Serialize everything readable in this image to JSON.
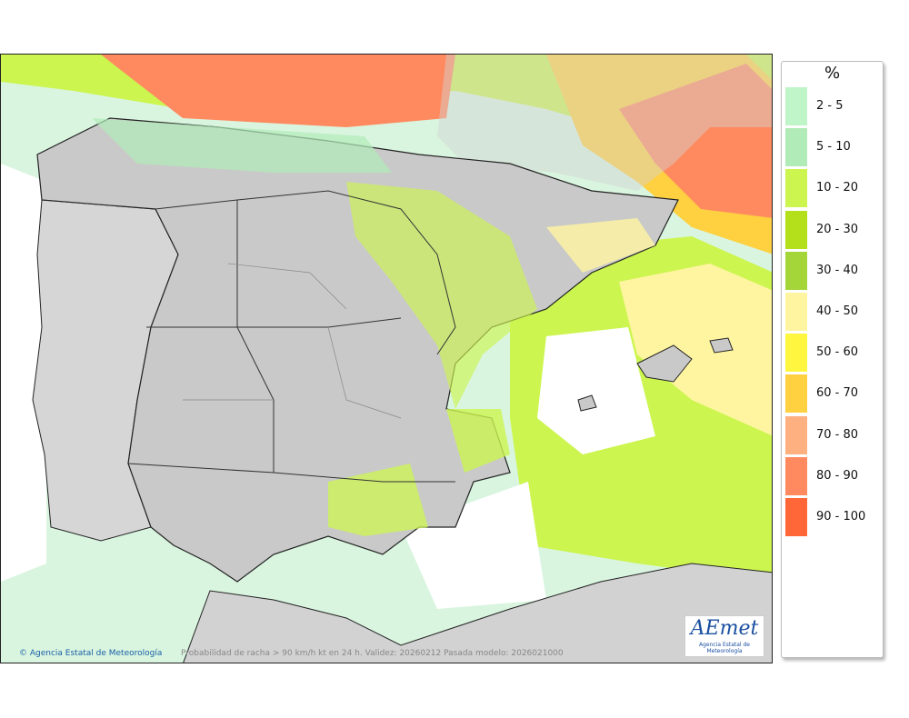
{
  "legend": {
    "title": "%",
    "items": [
      {
        "label": "2 - 5",
        "color": "#bff5c8"
      },
      {
        "label": "5 - 10",
        "color": "#b0ebb8"
      },
      {
        "label": "10 - 20",
        "color": "#ccf550"
      },
      {
        "label": "20 - 30",
        "color": "#b3e01a"
      },
      {
        "label": "30 - 40",
        "color": "#a4d63a"
      },
      {
        "label": "40 - 50",
        "color": "#fff5a0"
      },
      {
        "label": "50 - 60",
        "color": "#fff640"
      },
      {
        "label": "60 - 70",
        "color": "#ffd040"
      },
      {
        "label": "70 - 80",
        "color": "#ffb080"
      },
      {
        "label": "80 - 90",
        "color": "#ff8a60"
      },
      {
        "label": "90 - 100",
        "color": "#ff6638"
      }
    ]
  },
  "footer": {
    "credit": "Agencia Estatal de Meteorología",
    "caption": "Probabilidad de racha > 90 km/h kt en 24 h. Validez: 20260212 Pasada modelo: 2026021000"
  },
  "logo": {
    "text": "AEmet",
    "subtext": "Agencia Estatal de Meteorología"
  },
  "colors": {
    "land": "#cfcfcf",
    "sea": "#ffffff",
    "border": "#222222"
  }
}
